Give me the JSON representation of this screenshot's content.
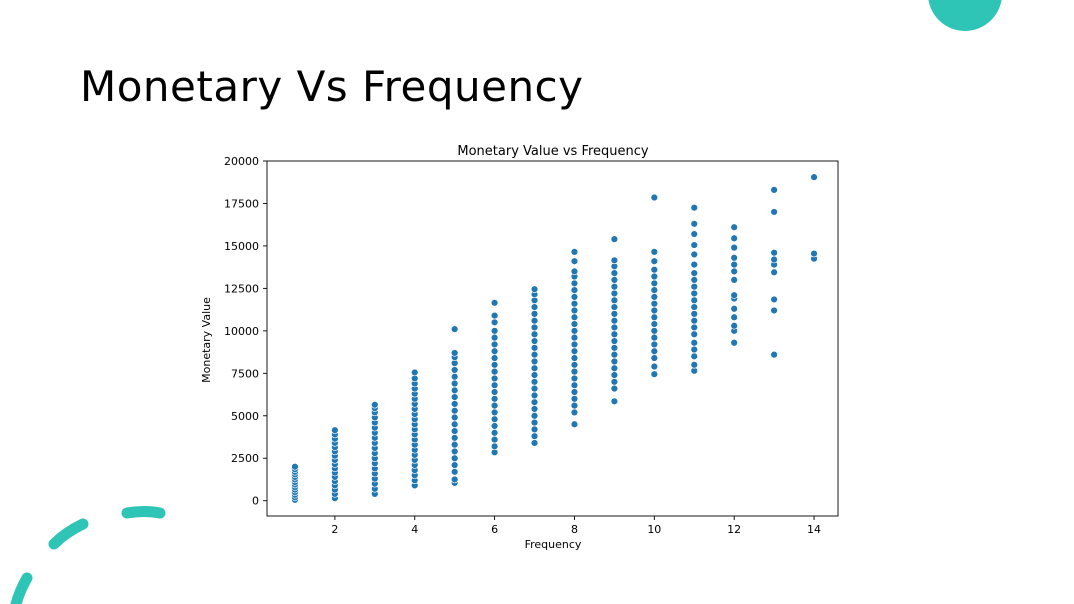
{
  "slide": {
    "title": "Monetary Vs Frequency",
    "accent_color": "#2ec4b6"
  },
  "chart_data": {
    "type": "scatter",
    "title": "Monetary Value vs Frequency",
    "xlabel": "Frequency",
    "ylabel": "Monetary Value",
    "xlim": [
      0.3,
      14.6
    ],
    "ylim": [
      -900,
      20000
    ],
    "xticks": [
      2,
      4,
      6,
      8,
      10,
      12,
      14
    ],
    "xtick_labels": [
      "2",
      "4",
      "6",
      "8",
      "10",
      "12",
      "14"
    ],
    "yticks": [
      0,
      2500,
      5000,
      7500,
      10000,
      12500,
      15000,
      17500,
      20000
    ],
    "ytick_labels": [
      "0",
      "2500",
      "5000",
      "7500",
      "10000",
      "12500",
      "15000",
      "17500",
      "20000"
    ],
    "grid": false,
    "marker_color": "#1f77b4",
    "series": [
      {
        "points": [
          {
            "x": 1,
            "y": 50
          },
          {
            "x": 1,
            "y": 200
          },
          {
            "x": 1,
            "y": 350
          },
          {
            "x": 1,
            "y": 500
          },
          {
            "x": 1,
            "y": 650
          },
          {
            "x": 1,
            "y": 800
          },
          {
            "x": 1,
            "y": 950
          },
          {
            "x": 1,
            "y": 1100
          },
          {
            "x": 1,
            "y": 1250
          },
          {
            "x": 1,
            "y": 1400
          },
          {
            "x": 1,
            "y": 1550
          },
          {
            "x": 1,
            "y": 1700
          },
          {
            "x": 1,
            "y": 1850
          },
          {
            "x": 1,
            "y": 2000
          },
          {
            "x": 2,
            "y": 150
          },
          {
            "x": 2,
            "y": 400
          },
          {
            "x": 2,
            "y": 650
          },
          {
            "x": 2,
            "y": 900
          },
          {
            "x": 2,
            "y": 1150
          },
          {
            "x": 2,
            "y": 1400
          },
          {
            "x": 2,
            "y": 1650
          },
          {
            "x": 2,
            "y": 1900
          },
          {
            "x": 2,
            "y": 2150
          },
          {
            "x": 2,
            "y": 2400
          },
          {
            "x": 2,
            "y": 2650
          },
          {
            "x": 2,
            "y": 2900
          },
          {
            "x": 2,
            "y": 3150
          },
          {
            "x": 2,
            "y": 3400
          },
          {
            "x": 2,
            "y": 3650
          },
          {
            "x": 2,
            "y": 3900
          },
          {
            "x": 2,
            "y": 4150
          },
          {
            "x": 3,
            "y": 400
          },
          {
            "x": 3,
            "y": 700
          },
          {
            "x": 3,
            "y": 1000
          },
          {
            "x": 3,
            "y": 1300
          },
          {
            "x": 3,
            "y": 1600
          },
          {
            "x": 3,
            "y": 1900
          },
          {
            "x": 3,
            "y": 2200
          },
          {
            "x": 3,
            "y": 2500
          },
          {
            "x": 3,
            "y": 2800
          },
          {
            "x": 3,
            "y": 3100
          },
          {
            "x": 3,
            "y": 3400
          },
          {
            "x": 3,
            "y": 3700
          },
          {
            "x": 3,
            "y": 4000
          },
          {
            "x": 3,
            "y": 4300
          },
          {
            "x": 3,
            "y": 4600
          },
          {
            "x": 3,
            "y": 4900
          },
          {
            "x": 3,
            "y": 5200
          },
          {
            "x": 3,
            "y": 5450
          },
          {
            "x": 3,
            "y": 5650
          },
          {
            "x": 4,
            "y": 900
          },
          {
            "x": 4,
            "y": 1200
          },
          {
            "x": 4,
            "y": 1500
          },
          {
            "x": 4,
            "y": 1800
          },
          {
            "x": 4,
            "y": 2100
          },
          {
            "x": 4,
            "y": 2400
          },
          {
            "x": 4,
            "y": 2700
          },
          {
            "x": 4,
            "y": 3000
          },
          {
            "x": 4,
            "y": 3300
          },
          {
            "x": 4,
            "y": 3600
          },
          {
            "x": 4,
            "y": 3900
          },
          {
            "x": 4,
            "y": 4200
          },
          {
            "x": 4,
            "y": 4500
          },
          {
            "x": 4,
            "y": 4800
          },
          {
            "x": 4,
            "y": 5100
          },
          {
            "x": 4,
            "y": 5400
          },
          {
            "x": 4,
            "y": 5700
          },
          {
            "x": 4,
            "y": 6000
          },
          {
            "x": 4,
            "y": 6300
          },
          {
            "x": 4,
            "y": 6600
          },
          {
            "x": 4,
            "y": 6900
          },
          {
            "x": 4,
            "y": 7200
          },
          {
            "x": 4,
            "y": 7550
          },
          {
            "x": 5,
            "y": 1050
          },
          {
            "x": 5,
            "y": 1250
          },
          {
            "x": 5,
            "y": 1700
          },
          {
            "x": 5,
            "y": 2100
          },
          {
            "x": 5,
            "y": 2500
          },
          {
            "x": 5,
            "y": 2900
          },
          {
            "x": 5,
            "y": 3300
          },
          {
            "x": 5,
            "y": 3700
          },
          {
            "x": 5,
            "y": 4100
          },
          {
            "x": 5,
            "y": 4500
          },
          {
            "x": 5,
            "y": 4900
          },
          {
            "x": 5,
            "y": 5300
          },
          {
            "x": 5,
            "y": 5700
          },
          {
            "x": 5,
            "y": 6100
          },
          {
            "x": 5,
            "y": 6500
          },
          {
            "x": 5,
            "y": 6900
          },
          {
            "x": 5,
            "y": 7300
          },
          {
            "x": 5,
            "y": 7700
          },
          {
            "x": 5,
            "y": 8100
          },
          {
            "x": 5,
            "y": 8450
          },
          {
            "x": 5,
            "y": 8700
          },
          {
            "x": 5,
            "y": 10100
          },
          {
            "x": 6,
            "y": 2850
          },
          {
            "x": 6,
            "y": 3200
          },
          {
            "x": 6,
            "y": 3600
          },
          {
            "x": 6,
            "y": 4000
          },
          {
            "x": 6,
            "y": 4400
          },
          {
            "x": 6,
            "y": 4800
          },
          {
            "x": 6,
            "y": 5200
          },
          {
            "x": 6,
            "y": 5600
          },
          {
            "x": 6,
            "y": 6000
          },
          {
            "x": 6,
            "y": 6400
          },
          {
            "x": 6,
            "y": 6800
          },
          {
            "x": 6,
            "y": 7200
          },
          {
            "x": 6,
            "y": 7600
          },
          {
            "x": 6,
            "y": 8000
          },
          {
            "x": 6,
            "y": 8400
          },
          {
            "x": 6,
            "y": 8800
          },
          {
            "x": 6,
            "y": 9200
          },
          {
            "x": 6,
            "y": 9600
          },
          {
            "x": 6,
            "y": 10000
          },
          {
            "x": 6,
            "y": 10500
          },
          {
            "x": 6,
            "y": 10900
          },
          {
            "x": 6,
            "y": 11650
          },
          {
            "x": 7,
            "y": 3400
          },
          {
            "x": 7,
            "y": 3800
          },
          {
            "x": 7,
            "y": 4200
          },
          {
            "x": 7,
            "y": 4600
          },
          {
            "x": 7,
            "y": 5000
          },
          {
            "x": 7,
            "y": 5400
          },
          {
            "x": 7,
            "y": 5800
          },
          {
            "x": 7,
            "y": 6200
          },
          {
            "x": 7,
            "y": 6600
          },
          {
            "x": 7,
            "y": 7000
          },
          {
            "x": 7,
            "y": 7400
          },
          {
            "x": 7,
            "y": 7800
          },
          {
            "x": 7,
            "y": 8200
          },
          {
            "x": 7,
            "y": 8600
          },
          {
            "x": 7,
            "y": 9000
          },
          {
            "x": 7,
            "y": 9400
          },
          {
            "x": 7,
            "y": 9800
          },
          {
            "x": 7,
            "y": 10200
          },
          {
            "x": 7,
            "y": 10600
          },
          {
            "x": 7,
            "y": 11000
          },
          {
            "x": 7,
            "y": 11400
          },
          {
            "x": 7,
            "y": 11800
          },
          {
            "x": 7,
            "y": 12150
          },
          {
            "x": 7,
            "y": 12450
          },
          {
            "x": 8,
            "y": 4500
          },
          {
            "x": 8,
            "y": 5200
          },
          {
            "x": 8,
            "y": 5600
          },
          {
            "x": 8,
            "y": 6000
          },
          {
            "x": 8,
            "y": 6400
          },
          {
            "x": 8,
            "y": 6800
          },
          {
            "x": 8,
            "y": 7200
          },
          {
            "x": 8,
            "y": 7600
          },
          {
            "x": 8,
            "y": 8000
          },
          {
            "x": 8,
            "y": 8400
          },
          {
            "x": 8,
            "y": 8800
          },
          {
            "x": 8,
            "y": 9200
          },
          {
            "x": 8,
            "y": 9600
          },
          {
            "x": 8,
            "y": 10000
          },
          {
            "x": 8,
            "y": 10400
          },
          {
            "x": 8,
            "y": 10800
          },
          {
            "x": 8,
            "y": 11200
          },
          {
            "x": 8,
            "y": 11600
          },
          {
            "x": 8,
            "y": 12000
          },
          {
            "x": 8,
            "y": 12400
          },
          {
            "x": 8,
            "y": 12800
          },
          {
            "x": 8,
            "y": 13200
          },
          {
            "x": 8,
            "y": 13500
          },
          {
            "x": 8,
            "y": 14100
          },
          {
            "x": 8,
            "y": 14650
          },
          {
            "x": 9,
            "y": 5850
          },
          {
            "x": 9,
            "y": 6600
          },
          {
            "x": 9,
            "y": 7000
          },
          {
            "x": 9,
            "y": 7400
          },
          {
            "x": 9,
            "y": 7800
          },
          {
            "x": 9,
            "y": 8200
          },
          {
            "x": 9,
            "y": 8600
          },
          {
            "x": 9,
            "y": 9000
          },
          {
            "x": 9,
            "y": 9400
          },
          {
            "x": 9,
            "y": 9800
          },
          {
            "x": 9,
            "y": 10200
          },
          {
            "x": 9,
            "y": 10600
          },
          {
            "x": 9,
            "y": 11000
          },
          {
            "x": 9,
            "y": 11400
          },
          {
            "x": 9,
            "y": 11800
          },
          {
            "x": 9,
            "y": 12200
          },
          {
            "x": 9,
            "y": 12600
          },
          {
            "x": 9,
            "y": 13000
          },
          {
            "x": 9,
            "y": 13400
          },
          {
            "x": 9,
            "y": 13800
          },
          {
            "x": 9,
            "y": 14150
          },
          {
            "x": 9,
            "y": 15400
          },
          {
            "x": 10,
            "y": 7450
          },
          {
            "x": 10,
            "y": 7900
          },
          {
            "x": 10,
            "y": 8400
          },
          {
            "x": 10,
            "y": 8800
          },
          {
            "x": 10,
            "y": 9200
          },
          {
            "x": 10,
            "y": 9600
          },
          {
            "x": 10,
            "y": 10000
          },
          {
            "x": 10,
            "y": 10400
          },
          {
            "x": 10,
            "y": 10800
          },
          {
            "x": 10,
            "y": 11200
          },
          {
            "x": 10,
            "y": 11600
          },
          {
            "x": 10,
            "y": 12000
          },
          {
            "x": 10,
            "y": 12400
          },
          {
            "x": 10,
            "y": 12800
          },
          {
            "x": 10,
            "y": 13200
          },
          {
            "x": 10,
            "y": 13600
          },
          {
            "x": 10,
            "y": 14100
          },
          {
            "x": 10,
            "y": 14650
          },
          {
            "x": 10,
            "y": 17850
          },
          {
            "x": 11,
            "y": 7650
          },
          {
            "x": 11,
            "y": 8000
          },
          {
            "x": 11,
            "y": 8500
          },
          {
            "x": 11,
            "y": 8900
          },
          {
            "x": 11,
            "y": 9300
          },
          {
            "x": 11,
            "y": 9800
          },
          {
            "x": 11,
            "y": 10200
          },
          {
            "x": 11,
            "y": 10600
          },
          {
            "x": 11,
            "y": 11000
          },
          {
            "x": 11,
            "y": 11400
          },
          {
            "x": 11,
            "y": 11800
          },
          {
            "x": 11,
            "y": 12200
          },
          {
            "x": 11,
            "y": 12600
          },
          {
            "x": 11,
            "y": 13000
          },
          {
            "x": 11,
            "y": 13400
          },
          {
            "x": 11,
            "y": 13900
          },
          {
            "x": 11,
            "y": 14500
          },
          {
            "x": 11,
            "y": 15050
          },
          {
            "x": 11,
            "y": 15700
          },
          {
            "x": 11,
            "y": 16300
          },
          {
            "x": 11,
            "y": 17250
          },
          {
            "x": 12,
            "y": 9300
          },
          {
            "x": 12,
            "y": 10000
          },
          {
            "x": 12,
            "y": 10300
          },
          {
            "x": 12,
            "y": 10800
          },
          {
            "x": 12,
            "y": 11300
          },
          {
            "x": 12,
            "y": 11900
          },
          {
            "x": 12,
            "y": 12100
          },
          {
            "x": 12,
            "y": 13000
          },
          {
            "x": 12,
            "y": 13500
          },
          {
            "x": 12,
            "y": 13900
          },
          {
            "x": 12,
            "y": 14300
          },
          {
            "x": 12,
            "y": 14900
          },
          {
            "x": 12,
            "y": 15450
          },
          {
            "x": 12,
            "y": 16100
          },
          {
            "x": 13,
            "y": 8600
          },
          {
            "x": 13,
            "y": 11200
          },
          {
            "x": 13,
            "y": 11850
          },
          {
            "x": 13,
            "y": 13450
          },
          {
            "x": 13,
            "y": 13900
          },
          {
            "x": 13,
            "y": 14200
          },
          {
            "x": 13,
            "y": 14600
          },
          {
            "x": 13,
            "y": 17000
          },
          {
            "x": 13,
            "y": 18300
          },
          {
            "x": 14,
            "y": 14250
          },
          {
            "x": 14,
            "y": 14550
          },
          {
            "x": 14,
            "y": 19050
          }
        ]
      }
    ]
  }
}
